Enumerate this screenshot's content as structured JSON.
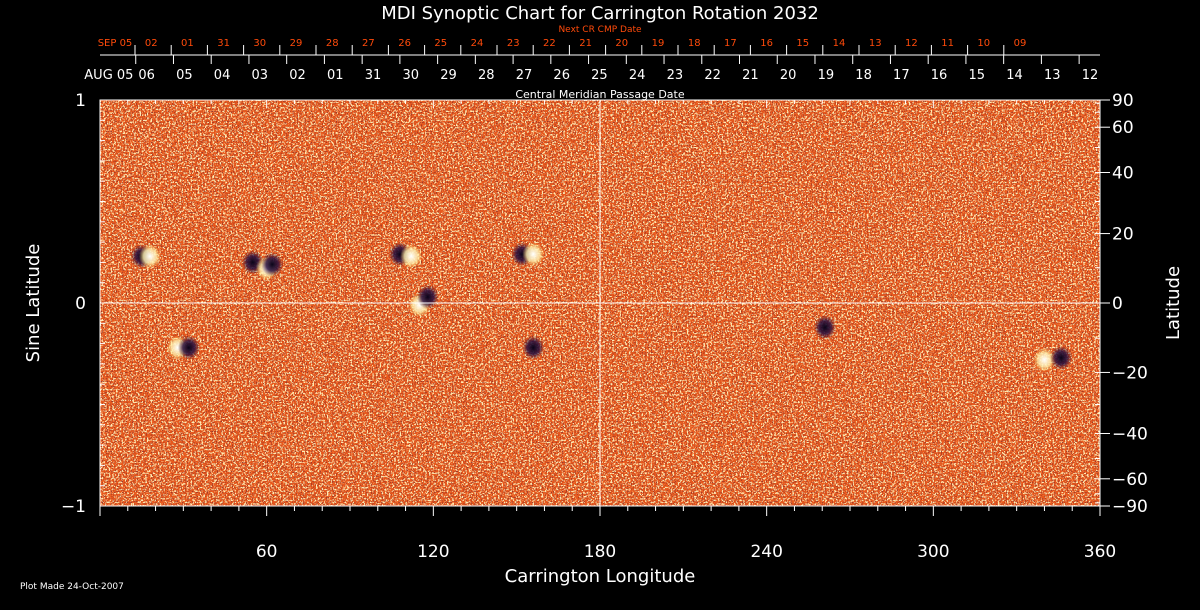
{
  "title": "MDI Synoptic Chart for Carrington Rotation 2032",
  "top_axis_label": "Next CR CMP Date",
  "middle_axis_label": "Central Meridian Passage Date",
  "footer": "Plot Made 24-Oct-2007",
  "colors": {
    "background": "#000000",
    "accent": "#ff4a0a",
    "text": "#ffffff",
    "map_base": "#e8581c"
  },
  "chart_data": {
    "type": "heatmap",
    "title": "MDI Synoptic Chart for Carrington Rotation 2032",
    "xlabel": "Carrington Longitude",
    "ylabel": "Sine Latitude",
    "y2label": "Latitude",
    "xlim": [
      0,
      360
    ],
    "ylim": [
      -1,
      1
    ],
    "x_ticks": [
      "60",
      "120",
      "180",
      "240",
      "300",
      "360"
    ],
    "y_ticks": [
      "1",
      "0",
      "−1"
    ],
    "lat_ticks": [
      "90",
      "60",
      "40",
      "20",
      "0",
      "−20",
      "−40",
      "−60",
      "−90"
    ],
    "grid": "lines at longitude 180 and sine latitude 0",
    "next_cr_dates": [
      "SEP 05",
      "02",
      "01",
      "31",
      "30",
      "29",
      "28",
      "27",
      "26",
      "25",
      "24",
      "23",
      "22",
      "21",
      "20",
      "19",
      "18",
      "17",
      "16",
      "15",
      "14",
      "13",
      "12",
      "11",
      "10",
      "09"
    ],
    "cmp_dates": [
      "AUG 05",
      "06",
      "05",
      "04",
      "03",
      "02",
      "01",
      "31",
      "30",
      "29",
      "28",
      "27",
      "26",
      "25",
      "24",
      "23",
      "22",
      "21",
      "20",
      "19",
      "18",
      "17",
      "16",
      "15",
      "14",
      "13",
      "12"
    ],
    "regions": [
      {
        "lon": 15,
        "sinlat": 0.23,
        "polarity": "negative"
      },
      {
        "lon": 18,
        "sinlat": 0.23,
        "polarity": "positive"
      },
      {
        "lon": 28,
        "sinlat": -0.22,
        "polarity": "positive"
      },
      {
        "lon": 32,
        "sinlat": -0.22,
        "polarity": "negative"
      },
      {
        "lon": 55,
        "sinlat": 0.2,
        "polarity": "negative"
      },
      {
        "lon": 60,
        "sinlat": 0.17,
        "polarity": "positive"
      },
      {
        "lon": 62,
        "sinlat": 0.19,
        "polarity": "negative"
      },
      {
        "lon": 108,
        "sinlat": 0.24,
        "polarity": "negative"
      },
      {
        "lon": 112,
        "sinlat": 0.23,
        "polarity": "positive"
      },
      {
        "lon": 115,
        "sinlat": -0.01,
        "polarity": "positive"
      },
      {
        "lon": 118,
        "sinlat": 0.03,
        "polarity": "negative"
      },
      {
        "lon": 152,
        "sinlat": 0.24,
        "polarity": "negative"
      },
      {
        "lon": 156,
        "sinlat": 0.24,
        "polarity": "positive"
      },
      {
        "lon": 156,
        "sinlat": -0.22,
        "polarity": "negative"
      },
      {
        "lon": 261,
        "sinlat": -0.12,
        "polarity": "negative"
      },
      {
        "lon": 340,
        "sinlat": -0.28,
        "polarity": "positive"
      },
      {
        "lon": 346,
        "sinlat": -0.27,
        "polarity": "negative"
      }
    ]
  }
}
